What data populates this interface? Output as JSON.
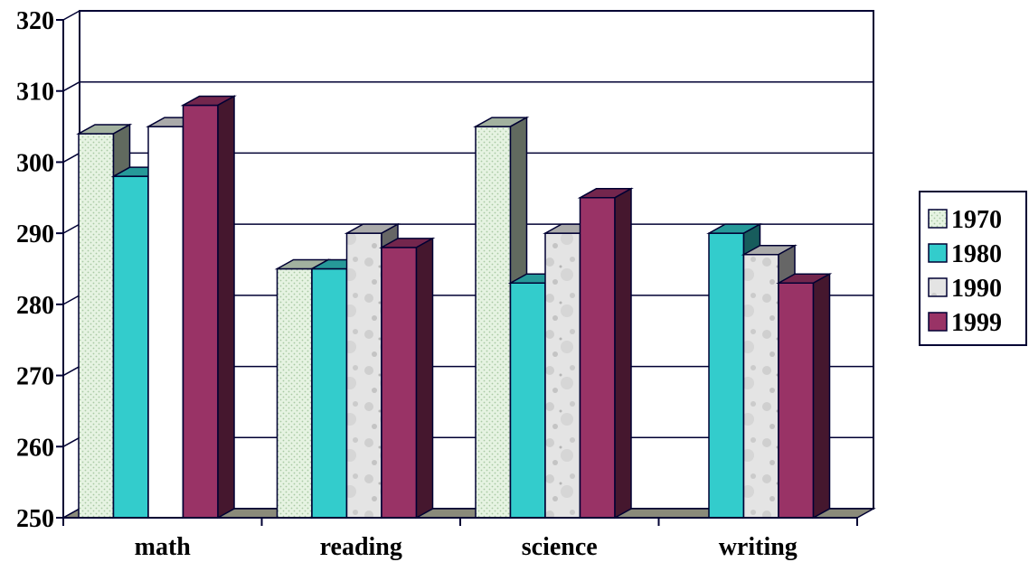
{
  "chart_data": {
    "type": "bar",
    "categories": [
      "math",
      "reading",
      "science",
      "writing"
    ],
    "series": [
      {
        "name": "1970",
        "values": [
          304,
          285,
          305,
          null
        ],
        "color": "#d8ecd4"
      },
      {
        "name": "1980",
        "values": [
          298,
          285,
          283,
          290
        ],
        "color": "#33cccc"
      },
      {
        "name": "1990",
        "values": [
          305,
          290,
          290,
          287
        ],
        "color": "#e2e2e2"
      },
      {
        "name": "1999",
        "values": [
          308,
          288,
          295,
          283
        ],
        "color": "#993366"
      }
    ],
    "ylim": [
      250,
      320
    ],
    "yticks": [
      "250",
      "260",
      "270",
      "280",
      "290",
      "300",
      "310",
      "320"
    ],
    "grid": true,
    "legend_position": "right",
    "title": "",
    "xlabel": "",
    "ylabel": ""
  }
}
